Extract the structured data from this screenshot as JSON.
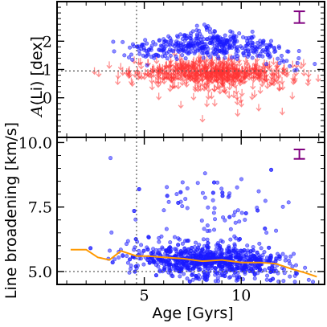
{
  "chart_data": [
    {
      "panel": "top",
      "type": "scatter",
      "ylabel": "A(Li) [dex]",
      "ylabel_unit": "[dex]",
      "yticks": [
        "0",
        "1",
        "2"
      ],
      "xlim": [
        0.5,
        14.3
      ],
      "ylim": [
        -1.4,
        3.4
      ],
      "vline_x": 4.6,
      "hline_y": 0.95,
      "colors": {
        "detections": "#1a1aff",
        "upper_limits": "#ff3333",
        "errorbar": "#800080",
        "reference_lines": "#555555"
      },
      "detections": {
        "marker": "dot",
        "x_range": [
          0.9,
          14.0
        ],
        "y_range": [
          0.6,
          3.1
        ],
        "count": 420,
        "envelope_y_mid": [
          [
            1,
            1.55
          ],
          [
            4,
            1.75
          ],
          [
            7,
            2.0
          ],
          [
            9,
            2.15
          ],
          [
            11,
            1.7
          ],
          [
            13.5,
            1.2
          ]
        ]
      },
      "upper_limits": {
        "marker": "down-arrow",
        "x_range": [
          0.9,
          14.0
        ],
        "y_range": [
          -1.4,
          1.6
        ],
        "count": 620,
        "median_y": 0.9
      },
      "typical_error_bar": {
        "x": 13.0,
        "y": 2.85,
        "half_height": 0.15
      }
    },
    {
      "panel": "bottom",
      "type": "scatter",
      "xlabel": "Age [Gyrs]",
      "ylabel": "Line broadening [km/s]",
      "xticks": [
        "5",
        "10"
      ],
      "yticks": [
        "5.0",
        "7.5",
        "10.0"
      ],
      "xlim": [
        0.5,
        14.3
      ],
      "ylim": [
        4.5,
        10.2
      ],
      "vline_x": 4.6,
      "hline_y": 5.0,
      "colors": {
        "points": "#1a1aff",
        "trend": "#ff9900",
        "errorbar": "#800080",
        "reference_lines": "#555555"
      },
      "points": {
        "marker": "dot",
        "x_range": [
          1.0,
          14.0
        ],
        "y_range": [
          4.6,
          9.4
        ],
        "count": 1100,
        "core_y_range": [
          4.9,
          6.4
        ]
      },
      "trend_line": {
        "x": [
          1.2,
          2.0,
          2.6,
          3.2,
          3.8,
          4.6,
          5.2,
          6.0,
          7.0,
          8.0,
          9.0,
          10.0,
          11.0,
          11.8,
          12.6,
          13.3,
          13.9
        ],
        "y": [
          5.85,
          5.85,
          5.55,
          5.45,
          5.8,
          5.6,
          5.6,
          5.55,
          5.5,
          5.4,
          5.45,
          5.35,
          5.35,
          5.3,
          5.1,
          4.95,
          4.8
        ]
      },
      "typical_error_bar": {
        "x": 13.0,
        "y": 9.55,
        "half_height": 0.12
      }
    }
  ]
}
